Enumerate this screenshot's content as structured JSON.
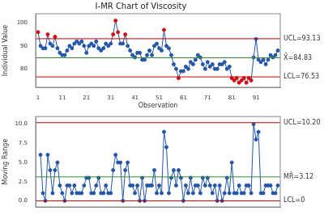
{
  "chart_data": [
    {
      "type": "line",
      "title": "I-MR Chart of Viscosity",
      "x_label": "Observation",
      "y_label": "Individual Value",
      "x": [
        1,
        2,
        3,
        4,
        5,
        6,
        7,
        8,
        9,
        10,
        11,
        12,
        13,
        14,
        15,
        16,
        17,
        18,
        19,
        20,
        21,
        22,
        23,
        24,
        25,
        26,
        27,
        28,
        29,
        30,
        31,
        32,
        33,
        34,
        35,
        36,
        37,
        38,
        39,
        40,
        41,
        42,
        43,
        44,
        45,
        46,
        47,
        48,
        49,
        50,
        51,
        52,
        53,
        54,
        55,
        56,
        57,
        58,
        59,
        60,
        61,
        62,
        63,
        64,
        65,
        66,
        67,
        68,
        69,
        70,
        71,
        72,
        73,
        74,
        75,
        76,
        77,
        78,
        79,
        80,
        81,
        82,
        83,
        84,
        85,
        86,
        87,
        88,
        89,
        90,
        91,
        92,
        93,
        94,
        95,
        96,
        97,
        98,
        99,
        100
      ],
      "values": [
        96,
        90,
        89,
        89,
        95,
        91,
        90,
        94,
        89,
        87,
        86,
        86,
        88,
        90,
        89,
        91,
        92,
        91,
        92,
        90,
        87,
        90,
        91,
        90,
        92,
        89,
        88,
        89,
        91,
        90,
        91,
        95,
        101,
        96,
        91,
        91,
        95,
        90,
        88,
        86,
        85,
        87,
        87,
        84,
        84,
        86,
        88,
        86,
        90,
        91,
        89,
        88,
        97,
        90,
        89,
        86,
        82,
        80,
        76,
        79,
        79,
        81,
        80,
        83,
        82,
        84,
        86,
        85,
        82,
        80,
        83,
        81,
        82,
        80,
        80,
        82,
        82,
        83,
        80,
        81,
        76,
        75,
        76,
        74,
        75,
        76,
        74,
        76,
        75,
        85,
        93,
        84,
        83,
        84,
        82,
        84,
        86,
        85,
        86,
        88
      ],
      "color": "#2456a8",
      "colors": [
        "#d01010",
        "#2456a8",
        "#2456a8",
        "#2456a8",
        "#d01010",
        "#2456a8",
        "#2456a8",
        "#d01010",
        "#2456a8",
        "#2456a8",
        "#2456a8",
        "#2456a8",
        "#2456a8",
        "#2456a8",
        "#2456a8",
        "#2456a8",
        "#2456a8",
        "#2456a8",
        "#2456a8",
        "#2456a8",
        "#2456a8",
        "#2456a8",
        "#2456a8",
        "#2456a8",
        "#2456a8",
        "#2456a8",
        "#2456a8",
        "#2456a8",
        "#2456a8",
        "#2456a8",
        "#2456a8",
        "#d01010",
        "#d01010",
        "#d01010",
        "#2456a8",
        "#2456a8",
        "#d01010",
        "#2456a8",
        "#2456a8",
        "#2456a8",
        "#2456a8",
        "#2456a8",
        "#2456a8",
        "#2456a8",
        "#2456a8",
        "#2456a8",
        "#2456a8",
        "#2456a8",
        "#2456a8",
        "#2456a8",
        "#2456a8",
        "#2456a8",
        "#d01010",
        "#2456a8",
        "#2456a8",
        "#2456a8",
        "#2456a8",
        "#2456a8",
        "#d01010",
        "#2456a8",
        "#2456a8",
        "#2456a8",
        "#2456a8",
        "#2456a8",
        "#2456a8",
        "#2456a8",
        "#2456a8",
        "#2456a8",
        "#2456a8",
        "#2456a8",
        "#2456a8",
        "#2456a8",
        "#2456a8",
        "#2456a8",
        "#2456a8",
        "#2456a8",
        "#2456a8",
        "#2456a8",
        "#2456a8",
        "#2456a8",
        "#d01010",
        "#d01010",
        "#d01010",
        "#d01010",
        "#d01010",
        "#d01010",
        "#d01010",
        "#d01010",
        "#d01010",
        "#2456a8",
        "#2456a8",
        "#2456a8",
        "#2456a8",
        "#2456a8",
        "#2456a8",
        "#2456a8",
        "#2456a8",
        "#2456a8",
        "#2456a8",
        "#2456a8"
      ],
      "marker": "circle",
      "xlim": [
        0,
        101
      ],
      "xticks": [
        1,
        11,
        21,
        31,
        41,
        51,
        61,
        71,
        81,
        91
      ],
      "ylim": [
        72,
        104
      ],
      "yticks": [
        80,
        90,
        100
      ],
      "grid": false,
      "reference_lines": [
        {
          "label": "UCL=93.13",
          "value": 93.13,
          "color": "#c00000"
        },
        {
          "label": "X̄=84.83",
          "value": 84.83,
          "color": "#2e8b2e"
        },
        {
          "label": "LCL=76.53",
          "value": 76.53,
          "color": "#c00000"
        }
      ]
    },
    {
      "type": "line",
      "y_label": "Moving Range",
      "x": [
        1,
        2,
        3,
        4,
        5,
        6,
        7,
        8,
        9,
        10,
        11,
        12,
        13,
        14,
        15,
        16,
        17,
        18,
        19,
        20,
        21,
        22,
        23,
        24,
        25,
        26,
        27,
        28,
        29,
        30,
        31,
        32,
        33,
        34,
        35,
        36,
        37,
        38,
        39,
        40,
        41,
        42,
        43,
        44,
        45,
        46,
        47,
        48,
        49,
        50,
        51,
        52,
        53,
        54,
        55,
        56,
        57,
        58,
        59,
        60,
        61,
        62,
        63,
        64,
        65,
        66,
        67,
        68,
        69,
        70,
        71,
        72,
        73,
        74,
        75,
        76,
        77,
        78,
        79,
        80,
        81,
        82,
        83,
        84,
        85,
        86,
        87,
        88,
        89,
        90,
        91,
        92,
        93,
        94,
        95,
        96,
        97,
        98,
        99,
        100
      ],
      "values": [
        null,
        6,
        1,
        0,
        6,
        4,
        1,
        4,
        5,
        2,
        1,
        0,
        2,
        2,
        1,
        2,
        1,
        1,
        1,
        2,
        3,
        3,
        1,
        1,
        2,
        3,
        1,
        1,
        2,
        1,
        1,
        4,
        6,
        5,
        5,
        0,
        4,
        5,
        2,
        2,
        1,
        2,
        0,
        3,
        0,
        2,
        2,
        2,
        4,
        1,
        2,
        1,
        9,
        7,
        1,
        3,
        4,
        2,
        4,
        3,
        0,
        2,
        1,
        3,
        1,
        2,
        2,
        1,
        3,
        2,
        3,
        2,
        1,
        2,
        0,
        2,
        0,
        1,
        3,
        1,
        5,
        1,
        1,
        2,
        1,
        1,
        2,
        2,
        1,
        10,
        8,
        9,
        1,
        1,
        2,
        2,
        2,
        1,
        1,
        2
      ],
      "color": "#2456a8",
      "marker": "circle",
      "xlim": [
        0,
        101
      ],
      "ylim": [
        -0.8,
        11
      ],
      "yticks": [
        {
          "value": 0,
          "label": "0.0"
        },
        {
          "value": 2.5,
          "label": "2.5"
        },
        {
          "value": 5,
          "label": "5.0"
        },
        {
          "value": 7.5,
          "label": "7.5"
        },
        {
          "value": 10,
          "label": "10.0"
        }
      ],
      "grid": false,
      "tick_labels": "y",
      "reference_lines": [
        {
          "label": "UCL=10.20",
          "value": 10.2,
          "color": "#c00000"
        },
        {
          "label": "MR̄=3.12",
          "value": 3.12,
          "color": "#2e8b2e"
        },
        {
          "label": "LCL=0",
          "value": 0,
          "color": "#c00000"
        }
      ]
    }
  ]
}
